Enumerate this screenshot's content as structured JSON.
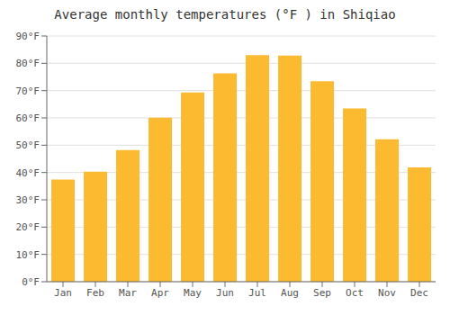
{
  "chart_data": {
    "type": "bar",
    "title": "Average monthly temperatures (°F ) in Shiqiao",
    "categories": [
      "Jan",
      "Feb",
      "Mar",
      "Apr",
      "May",
      "Jun",
      "Jul",
      "Aug",
      "Sep",
      "Oct",
      "Nov",
      "Dec"
    ],
    "values": [
      37.4,
      40.3,
      48.2,
      60.1,
      69.3,
      76.3,
      83.0,
      82.8,
      73.4,
      63.5,
      52.2,
      41.9
    ],
    "color": "#FBBA2F",
    "ylim": [
      0,
      90
    ],
    "yticks": [
      {
        "value": 0,
        "label": "0°F"
      },
      {
        "value": 10,
        "label": "10°F"
      },
      {
        "value": 20,
        "label": "20°F"
      },
      {
        "value": 30,
        "label": "30°F"
      },
      {
        "value": 40,
        "label": "40°F"
      },
      {
        "value": 50,
        "label": "50°F"
      },
      {
        "value": 60,
        "label": "60°F"
      },
      {
        "value": 70,
        "label": "70°F"
      },
      {
        "value": 80,
        "label": "80°F"
      },
      {
        "value": 90,
        "label": "90°F"
      }
    ],
    "grid": true
  }
}
